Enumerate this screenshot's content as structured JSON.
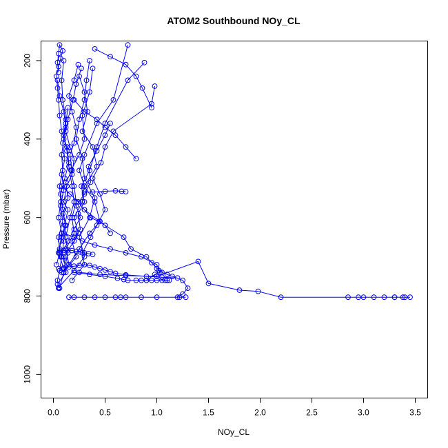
{
  "chart_data": {
    "type": "line",
    "title": "ATOM2 Southbound NOy_CL",
    "xlabel": "NOy_CL",
    "ylabel": "Pressure (mbar)",
    "xlim": [
      -0.12,
      3.62
    ],
    "ylim": [
      1060,
      150
    ],
    "y_reversed": true,
    "x_ticks": [
      "0.0",
      "0.5",
      "1.0",
      "1.5",
      "2.0",
      "2.5",
      "3.0",
      "3.5"
    ],
    "x_tick_values": [
      0,
      0.5,
      1.0,
      1.5,
      2.0,
      2.5,
      3.0,
      3.5
    ],
    "y_ticks": [
      "200",
      "400",
      "600",
      "800",
      "1000"
    ],
    "y_tick_values": [
      200,
      400,
      600,
      800,
      1000
    ],
    "marker": "open-circle",
    "color": "#0000ff",
    "series": [
      {
        "x": [
          0.05,
          0.04,
          0.06,
          0.08,
          0.1,
          0.12,
          0.09,
          0.07,
          0.11,
          0.15,
          0.13,
          0.08,
          0.06,
          0.05,
          0.04,
          0.03,
          0.05,
          0.07,
          0.09,
          0.06,
          0.05,
          0.04,
          0.05
        ],
        "y": [
          780,
          760,
          735,
          700,
          660,
          620,
          580,
          540,
          500,
          460,
          420,
          380,
          340,
          300,
          270,
          240,
          215,
          195,
          175,
          160,
          182,
          205,
          230
        ]
      },
      {
        "x": [
          0.06,
          0.1,
          0.14,
          0.12,
          0.16,
          0.2,
          0.18,
          0.15,
          0.13,
          0.1,
          0.12,
          0.09,
          0.08,
          0.1
        ],
        "y": [
          780,
          740,
          690,
          650,
          600,
          560,
          520,
          470,
          430,
          390,
          350,
          300,
          250,
          200
        ]
      },
      {
        "x": [
          0.05,
          0.2,
          0.3,
          0.25,
          0.35,
          0.4,
          0.3,
          0.28,
          0.22,
          0.25,
          0.3,
          0.32,
          0.35
        ],
        "y": [
          778,
          735,
          700,
          650,
          600,
          550,
          500,
          450,
          400,
          350,
          300,
          250,
          200
        ]
      },
      {
        "x": [
          0.08,
          0.15,
          0.12,
          0.2,
          0.18,
          0.22,
          0.2,
          0.17,
          0.25,
          0.3,
          0.28,
          0.35,
          0.38
        ],
        "y": [
          740,
          720,
          680,
          640,
          600,
          560,
          520,
          480,
          440,
          400,
          340,
          280,
          220
        ]
      },
      {
        "x": [
          0.1,
          0.05,
          0.07,
          0.12,
          0.09,
          0.14,
          0.12,
          0.18,
          0.16,
          0.2,
          0.22,
          0.18,
          0.15,
          0.2,
          0.24
        ],
        "y": [
          730,
          690,
          660,
          620,
          590,
          550,
          510,
          480,
          440,
          410,
          370,
          330,
          290,
          250,
          210
        ]
      },
      {
        "x": [
          0.12,
          0.06,
          0.08,
          0.05,
          0.07,
          0.06,
          0.09,
          0.08,
          0.1,
          0.12,
          0.14
        ],
        "y": [
          710,
          680,
          640,
          600,
          560,
          520,
          480,
          440,
          400,
          360,
          320
        ]
      },
      {
        "x": [
          0.15,
          0.25,
          0.35,
          0.45,
          0.4,
          0.3,
          0.42,
          0.38,
          0.28,
          0.33,
          0.3,
          0.25
        ],
        "y": [
          720,
          680,
          640,
          610,
          560,
          520,
          470,
          420,
          380,
          330,
          280,
          240
        ]
      },
      {
        "x": [
          0.18,
          0.3,
          0.28,
          0.36,
          0.42,
          0.5,
          0.45,
          0.38,
          0.46,
          0.5,
          0.58,
          0.95,
          0.98
        ],
        "y": [
          760,
          720,
          690,
          650,
          620,
          580,
          540,
          500,
          460,
          420,
          380,
          310,
          265
        ]
      },
      {
        "x": [
          0.1,
          0.22,
          0.18,
          0.26,
          0.24,
          0.3,
          0.27,
          0.35,
          0.42,
          0.5,
          0.72,
          0.88
        ],
        "y": [
          740,
          700,
          660,
          630,
          590,
          560,
          520,
          480,
          420,
          360,
          250,
          205
        ]
      },
      {
        "x": [
          0.04,
          0.12,
          0.1,
          0.2,
          0.24,
          0.2,
          0.28,
          0.3,
          0.25,
          0.3,
          0.42,
          0.58,
          0.72
        ],
        "y": [
          770,
          740,
          700,
          660,
          640,
          600,
          560,
          520,
          480,
          440,
          360,
          300,
          160
        ]
      },
      {
        "x": [
          0.05,
          0.08,
          0.11,
          0.14,
          0.1,
          0.13,
          0.18,
          0.2,
          0.16,
          0.12,
          0.14,
          0.19,
          0.22,
          0.27
        ],
        "y": [
          690,
          650,
          620,
          580,
          560,
          520,
          490,
          450,
          420,
          380,
          350,
          300,
          260,
          220
        ]
      },
      {
        "x": [
          0.07,
          0.14,
          0.2,
          0.26,
          0.22,
          0.3,
          0.36,
          0.34,
          0.42,
          0.5,
          0.55
        ],
        "y": [
          700,
          660,
          630,
          600,
          570,
          540,
          510,
          470,
          430,
          390,
          360
        ]
      },
      {
        "x": [
          0.03,
          0.06,
          0.05,
          0.09,
          0.07,
          0.1,
          0.08,
          0.11,
          0.09,
          0.12,
          0.1,
          0.06,
          0.04
        ],
        "y": [
          720,
          690,
          650,
          610,
          570,
          530,
          490,
          450,
          410,
          370,
          330,
          290,
          250
        ]
      },
      {
        "x": [
          0.1,
          0.2,
          0.28,
          0.4,
          0.55,
          0.7,
          0.85,
          1.0,
          1.03,
          0.98,
          0.9
        ],
        "y": [
          640,
          650,
          660,
          670,
          680,
          690,
          700,
          720,
          740,
          745,
          760
        ]
      },
      {
        "x": [
          0.3,
          0.5,
          0.68,
          0.75,
          0.9,
          0.95,
          1.0,
          1.02,
          1.05,
          1.1,
          1.15,
          1.25,
          1.3,
          1.25,
          1.2
        ],
        "y": [
          580,
          620,
          650,
          680,
          700,
          715,
          730,
          735,
          740,
          745,
          750,
          760,
          780,
          795,
          803
        ]
      },
      {
        "x": [
          0.2,
          0.35,
          0.5,
          0.62,
          0.68,
          0.72,
          0.8,
          0.85,
          0.9,
          0.95,
          1.0,
          1.05,
          1.08,
          1.1,
          1.12
        ],
        "y": [
          740,
          745,
          750,
          755,
          758,
          760,
          760,
          760,
          760,
          760,
          760,
          760,
          760,
          760,
          760
        ]
      },
      {
        "x": [
          0.25,
          0.45,
          0.7,
          1.0,
          1.4,
          1.5,
          1.8,
          1.98,
          2.2,
          2.85,
          2.95,
          3.0,
          3.1,
          3.2,
          3.3,
          3.38,
          3.45,
          3.4,
          3.3
        ],
        "y": [
          740,
          745,
          748,
          750,
          712,
          768,
          785,
          788,
          803,
          803,
          803,
          803,
          803,
          803,
          803,
          803,
          803,
          803,
          803
        ]
      },
      {
        "x": [
          0.15,
          0.2,
          0.3,
          0.4,
          0.5,
          0.6,
          0.65,
          0.7,
          0.85,
          1.0,
          1.22,
          1.28
        ],
        "y": [
          803,
          803,
          803,
          803,
          803,
          803,
          803,
          803,
          803,
          803,
          803,
          803
        ]
      },
      {
        "x": [
          0.05,
          0.1,
          0.15,
          0.2,
          0.25,
          0.3,
          0.35,
          0.4,
          0.45,
          0.5,
          0.55,
          0.6,
          0.7,
          0.9,
          1.05,
          1.2
        ],
        "y": [
          730,
          728,
          726,
          724,
          722,
          720,
          722,
          726,
          730,
          734,
          738,
          742,
          746,
          750,
          752,
          754
        ]
      },
      {
        "x": [
          0.06,
          0.1,
          0.14,
          0.18,
          0.22,
          0.26,
          0.3,
          0.34,
          0.38
        ],
        "y": [
          685,
          684,
          683,
          684,
          686,
          688,
          690,
          692,
          694
        ]
      },
      {
        "x": [
          0.3,
          0.38,
          0.5,
          0.6,
          0.66,
          0.7
        ],
        "y": [
          535,
          535,
          533,
          532,
          533,
          534
        ]
      },
      {
        "x": [
          0.08,
          0.16,
          0.24,
          0.3,
          0.36,
          0.44,
          0.5,
          0.55
        ],
        "y": [
          520,
          540,
          560,
          580,
          600,
          610,
          620,
          640
        ]
      },
      {
        "x": [
          0.2,
          0.3,
          0.42,
          0.5,
          0.6,
          0.7,
          0.8
        ],
        "y": [
          300,
          330,
          350,
          370,
          390,
          420,
          450
        ]
      },
      {
        "x": [
          0.4,
          0.55,
          0.7,
          0.8,
          0.86,
          0.95
        ],
        "y": [
          170,
          190,
          210,
          240,
          270,
          320
        ]
      }
    ]
  }
}
